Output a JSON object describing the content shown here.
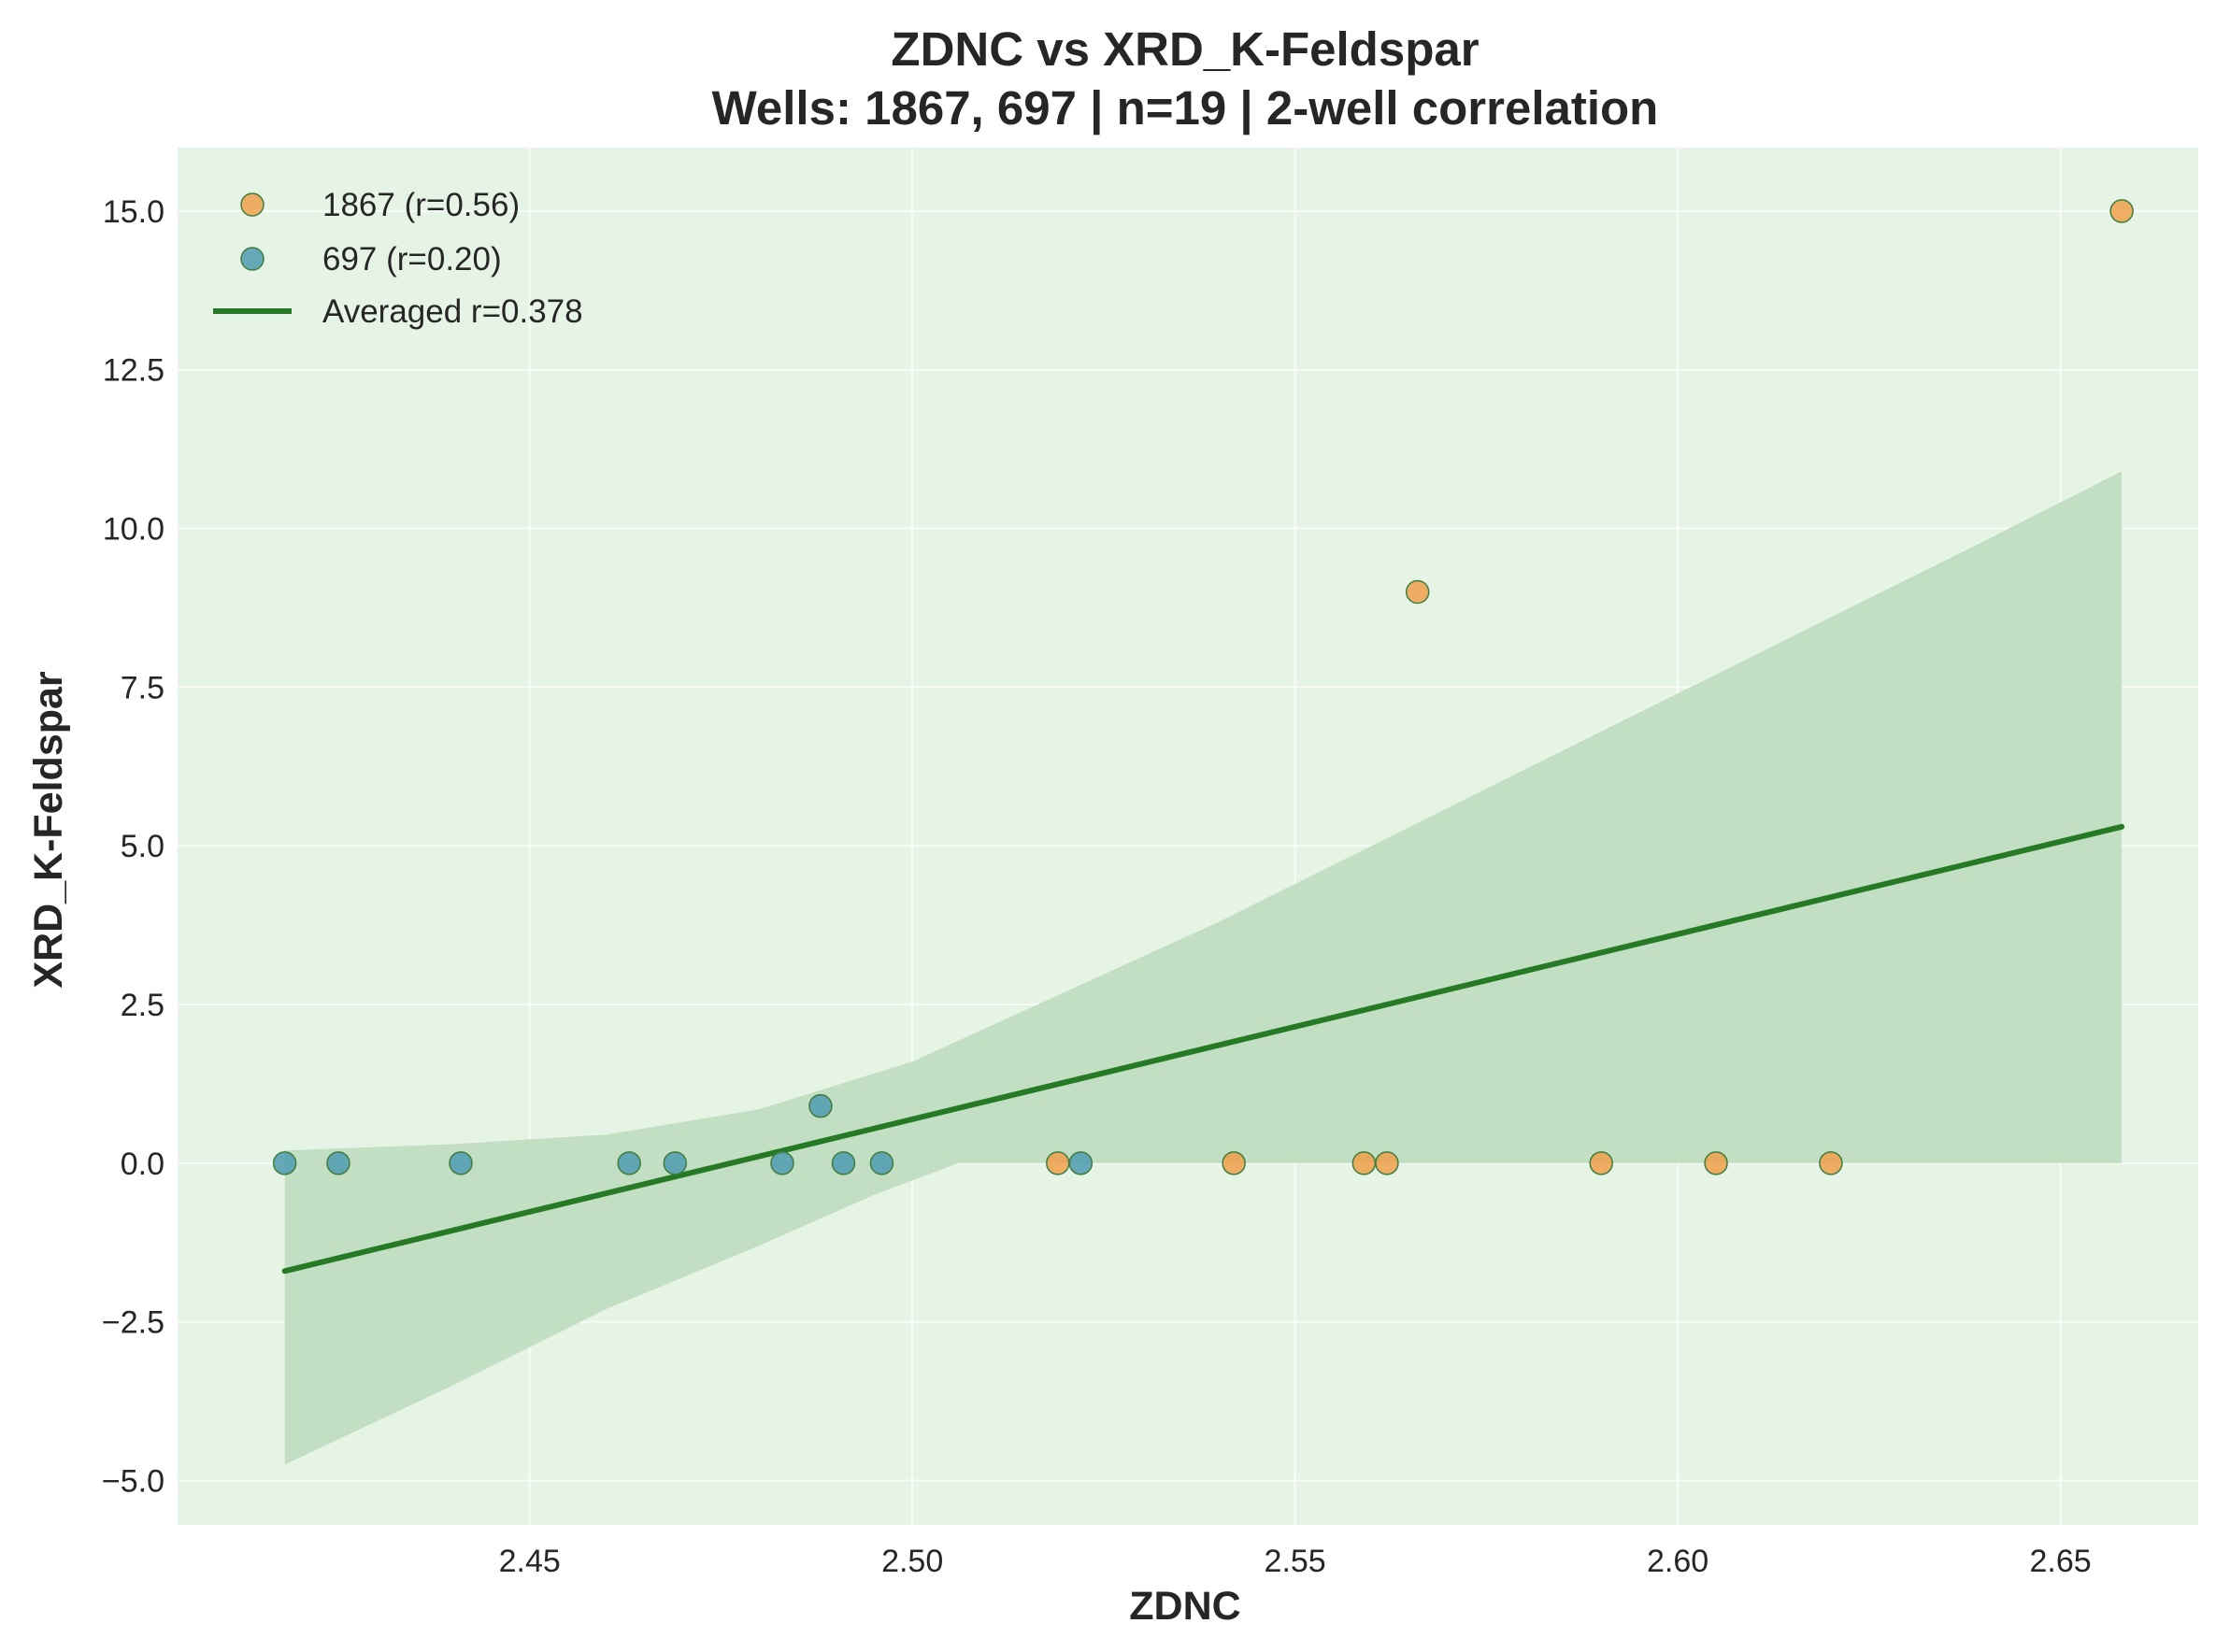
{
  "chart_data": {
    "type": "scatter",
    "title": "ZDNC vs XRD_K-Feldspar",
    "subtitle": "Wells: 1867, 697 | n=19 | 2-well correlation",
    "xlabel": "ZDNC",
    "ylabel": "XRD_K-Feldspar",
    "xlim": [
      2.404,
      2.668
    ],
    "ylim": [
      -5.7,
      16.0
    ],
    "xticks": [
      2.45,
      2.5,
      2.55,
      2.6,
      2.65
    ],
    "xtick_labels": [
      "2.45",
      "2.50",
      "2.55",
      "2.60",
      "2.65"
    ],
    "yticks": [
      -5.0,
      -2.5,
      0.0,
      2.5,
      5.0,
      7.5,
      10.0,
      12.5,
      15.0
    ],
    "ytick_labels": [
      "−5.0",
      "−2.5",
      "0.0",
      "2.5",
      "5.0",
      "7.5",
      "10.0",
      "12.5",
      "15.0"
    ],
    "grid": true,
    "legend_position": "top-left",
    "colors": {
      "background": "#e6f4e6",
      "series_1867": "#f0a04b",
      "series_697": "#4e9bb0",
      "marker_edge": "#3f7d3f",
      "fit_line": "#267a26",
      "confidence_band": "#c3dfc3"
    },
    "series": [
      {
        "name": "1867 (r=0.56)",
        "color": "#f0a04b",
        "points": [
          {
            "x": 2.519,
            "y": 0.0
          },
          {
            "x": 2.542,
            "y": 0.0
          },
          {
            "x": 2.559,
            "y": 0.0
          },
          {
            "x": 2.562,
            "y": 0.0
          },
          {
            "x": 2.566,
            "y": 9.0
          },
          {
            "x": 2.59,
            "y": 0.0
          },
          {
            "x": 2.605,
            "y": 0.0
          },
          {
            "x": 2.62,
            "y": 0.0
          },
          {
            "x": 2.658,
            "y": 15.0
          }
        ]
      },
      {
        "name": "697 (r=0.20)",
        "color": "#4e9bb0",
        "points": [
          {
            "x": 2.418,
            "y": 0.0
          },
          {
            "x": 2.425,
            "y": 0.0
          },
          {
            "x": 2.441,
            "y": 0.0
          },
          {
            "x": 2.463,
            "y": 0.0
          },
          {
            "x": 2.469,
            "y": 0.0
          },
          {
            "x": 2.483,
            "y": 0.0
          },
          {
            "x": 2.488,
            "y": 0.9
          },
          {
            "x": 2.491,
            "y": 0.0
          },
          {
            "x": 2.496,
            "y": 0.0
          },
          {
            "x": 2.522,
            "y": 0.0
          }
        ]
      }
    ],
    "fit": {
      "name": "Averaged r=0.378",
      "color": "#267a26",
      "points": [
        {
          "x": 2.418,
          "y": -1.7
        },
        {
          "x": 2.658,
          "y": 5.3
        }
      ]
    },
    "confidence_band": {
      "upper": [
        {
          "x": 2.418,
          "y": 0.2
        },
        {
          "x": 2.44,
          "y": 0.3
        },
        {
          "x": 2.46,
          "y": 0.45
        },
        {
          "x": 2.48,
          "y": 0.85
        },
        {
          "x": 2.5,
          "y": 1.6
        },
        {
          "x": 2.52,
          "y": 2.7
        },
        {
          "x": 2.54,
          "y": 3.8
        },
        {
          "x": 2.56,
          "y": 5.0
        },
        {
          "x": 2.58,
          "y": 6.2
        },
        {
          "x": 2.6,
          "y": 7.4
        },
        {
          "x": 2.62,
          "y": 8.6
        },
        {
          "x": 2.64,
          "y": 9.8
        },
        {
          "x": 2.658,
          "y": 10.9
        }
      ],
      "lower": [
        {
          "x": 2.418,
          "y": -4.75
        },
        {
          "x": 2.44,
          "y": -3.5
        },
        {
          "x": 2.46,
          "y": -2.3
        },
        {
          "x": 2.48,
          "y": -1.3
        },
        {
          "x": 2.495,
          "y": -0.5
        },
        {
          "x": 2.506,
          "y": 0.0
        },
        {
          "x": 2.658,
          "y": 0.0
        }
      ]
    }
  }
}
